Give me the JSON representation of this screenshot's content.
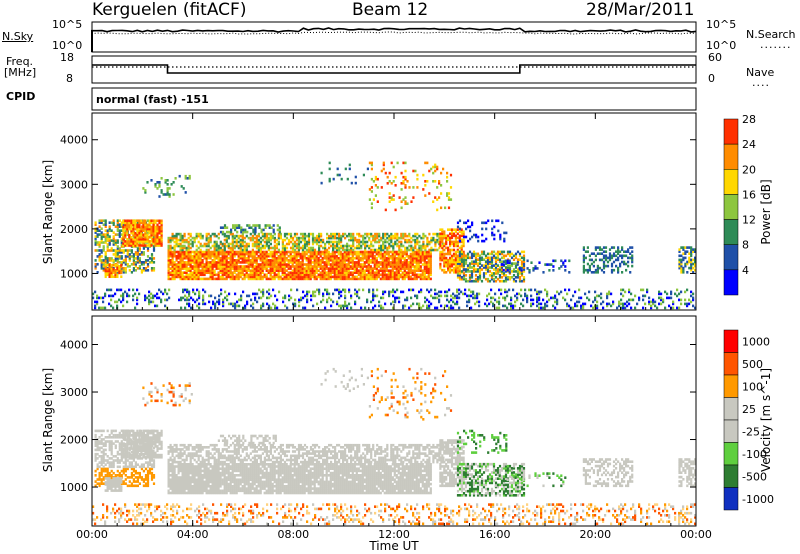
{
  "header": {
    "station": "Kerguelen (fitACF)",
    "beam": "Beam 12",
    "date": "28/Mar/2011"
  },
  "sky_panel": {
    "left_label": "N.Sky",
    "left_ticks": [
      "10^5",
      "10^0"
    ],
    "right_ticks": [
      "10^5",
      "10^0"
    ],
    "right_label": "N.Search",
    "right_legend": "......."
  },
  "freq_panel": {
    "left_label_1": "Freq.",
    "left_label_2": "[MHz]",
    "left_ticks": [
      "18",
      "8"
    ],
    "right_ticks": [
      "60",
      "0"
    ],
    "right_label": "Nave",
    "right_legend": "...."
  },
  "cpid": {
    "label": "CPID",
    "mode": "normal (fast) -151"
  },
  "chart_data": [
    {
      "type": "heatmap",
      "name": "power",
      "ylabel": "Slant Range [km]",
      "yticks": [
        "1000",
        "2000",
        "3000",
        "4000"
      ],
      "colorbar_label": "Power [dB]",
      "colorbar_ticks": [
        "4",
        "8",
        "12",
        "16",
        "20",
        "24",
        "28"
      ],
      "colors": [
        "#0000ff",
        "#1f50a8",
        "#2e8b57",
        "#8dc63f",
        "#ffd700",
        "#ff8c00",
        "#ff3000"
      ],
      "ylim": [
        180,
        4600
      ],
      "xlim_hours": [
        0,
        24
      ]
    },
    {
      "type": "heatmap",
      "name": "velocity",
      "ylabel": "Slant Range [km]",
      "yticks": [
        "1000",
        "2000",
        "3000",
        "4000"
      ],
      "colorbar_label": "Velocity [m s^-1]",
      "colorbar_ticks": [
        "1000",
        "500",
        "100",
        "25",
        "-25",
        "-100",
        "-500",
        "-1000"
      ],
      "colors": [
        "#1030c0",
        "#2e7d32",
        "#5fcf3f",
        "#c8c8c0",
        "#c8c8c0",
        "#ff9900",
        "#ff5500",
        "#ff0000"
      ],
      "ylim": [
        180,
        4600
      ],
      "xlim_hours": [
        0,
        24
      ]
    }
  ],
  "time_axis": {
    "ticks": [
      "00:00",
      "04:00",
      "08:00",
      "12:00",
      "16:00",
      "20:00",
      "00:00"
    ],
    "label": "Time UT"
  }
}
